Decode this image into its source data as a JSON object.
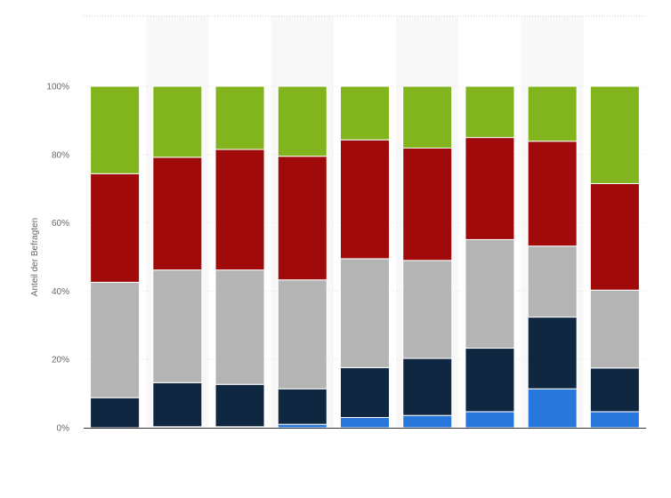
{
  "chart_data": {
    "type": "bar",
    "stacked": true,
    "ylabel": "Anteil der Befragten",
    "ylim": [
      0,
      100
    ],
    "y_ticks": [
      0,
      20,
      40,
      60,
      80,
      100
    ],
    "y_tick_labels": [
      "0%",
      "20%",
      "40%",
      "60%",
      "80%",
      "100%"
    ],
    "grid": true,
    "legend": "none",
    "categories": [
      "",
      "",
      "",
      "",
      "",
      "",
      "",
      "",
      ""
    ],
    "series": [
      {
        "color": "#2878dc",
        "values": [
          0.0,
          0.3,
          0.3,
          1.0,
          3.0,
          3.6,
          4.7,
          11.4,
          4.7
        ]
      },
      {
        "color": "#0f2741",
        "values": [
          8.8,
          12.9,
          12.4,
          10.4,
          14.6,
          16.7,
          18.6,
          21.0,
          12.8
        ]
      },
      {
        "color": "#b4b4b4",
        "values": [
          33.8,
          33.0,
          33.5,
          31.9,
          31.9,
          28.7,
          31.8,
          20.8,
          22.8
        ]
      },
      {
        "color": "#a00a0a",
        "values": [
          31.8,
          33.0,
          35.3,
          36.2,
          34.8,
          32.9,
          29.9,
          30.7,
          31.2
        ]
      },
      {
        "color": "#82b41e",
        "values": [
          25.6,
          20.8,
          18.5,
          20.5,
          15.7,
          18.1,
          15.0,
          16.1,
          28.5
        ]
      }
    ]
  }
}
